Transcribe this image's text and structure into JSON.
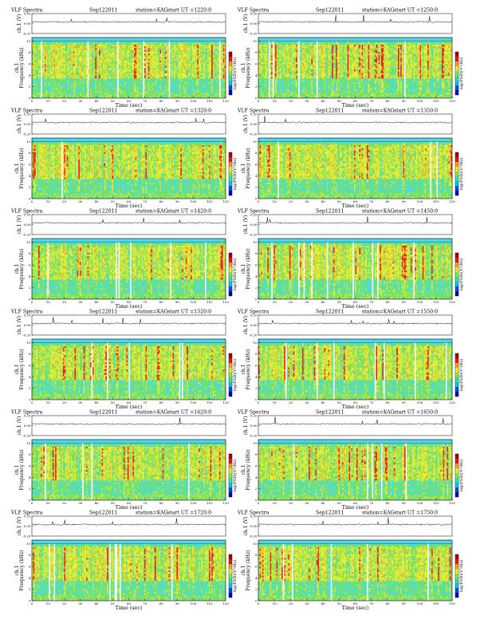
{
  "figure": {
    "header_left": "VLF Spectra",
    "date": "Sep122011",
    "station": "station=KAG",
    "start_prefix": "start  UT  ="
  },
  "colors": {
    "spectrogram": [
      "#4fd7ea",
      "#55e0b4",
      "#7be05a",
      "#c8e83a",
      "#f0f030",
      "#f5b020",
      "#e82020"
    ],
    "colorbar": [
      "#0000c8",
      "#0050f0",
      "#00c8f0",
      "#30e8a0",
      "#80f040",
      "#f0f020",
      "#f5a020",
      "#e81818",
      "#b00000"
    ]
  },
  "chart_data": [
    {
      "type": "heatmap",
      "id": "p1220",
      "start_ut": "1220:0",
      "seed": 11,
      "title": "",
      "xlabel": "Time  (sec)",
      "ylabel": "Frequency  (kHz)",
      "channel_label": "ch.1",
      "ch_axis_label": "ch.1 (V)",
      "colorbar_label": "log(PSD)(V²/Hz)",
      "x_range": [
        0,
        120
      ],
      "x_ticks": [
        0,
        10,
        20,
        30,
        40,
        50,
        60,
        70,
        80,
        90,
        100,
        110,
        120
      ],
      "y_range": [
        0,
        10
      ],
      "y_ticks": [
        0,
        2,
        4,
        6,
        8,
        10
      ],
      "ch_ticks": [
        "0.20",
        "0.00",
        "-0.20"
      ],
      "ch_range": [
        -0.2,
        0.2
      ]
    },
    {
      "type": "heatmap",
      "id": "p1250",
      "start_ut": "1250:0",
      "seed": 23,
      "title": "",
      "xlabel": "Time  (sec)",
      "ylabel": "Frequency  (kHz)",
      "channel_label": "ch.1",
      "ch_axis_label": "ch.1 (V)",
      "colorbar_label": "log(PSD)(V²/Hz)",
      "x_range": [
        0,
        120
      ],
      "x_ticks": [
        0,
        10,
        20,
        30,
        40,
        50,
        60,
        70,
        80,
        90,
        100,
        110,
        120
      ],
      "y_range": [
        0,
        10
      ],
      "y_ticks": [
        0,
        2,
        4,
        6,
        8,
        10
      ],
      "ch_ticks": [
        "0.20",
        "0.00",
        "-0.20"
      ],
      "ch_range": [
        -0.2,
        0.2
      ]
    },
    {
      "type": "heatmap",
      "id": "p1320",
      "start_ut": "1320:0",
      "seed": 37,
      "title": "",
      "xlabel": "Time  (sec)",
      "ylabel": "Frequency  (kHz)",
      "channel_label": "ch.1",
      "ch_axis_label": "ch.1 (V)",
      "colorbar_label": "log(PSD)(V²/Hz)",
      "x_range": [
        0,
        120
      ],
      "x_ticks": [
        0,
        10,
        20,
        30,
        40,
        50,
        60,
        70,
        80,
        90,
        100,
        110,
        120
      ],
      "y_range": [
        0,
        10
      ],
      "y_ticks": [
        0,
        2,
        4,
        6,
        8,
        10
      ],
      "ch_ticks": [
        "0.20",
        "0.00",
        "-0.20"
      ],
      "ch_range": [
        -0.2,
        0.2
      ]
    },
    {
      "type": "heatmap",
      "id": "p1350",
      "start_ut": "1350:0",
      "seed": 41,
      "title": "",
      "xlabel": "Time  (sec)",
      "ylabel": "Frequency  (kHz)",
      "channel_label": "ch.1",
      "ch_axis_label": "ch.1 (V)",
      "colorbar_label": "log(PSD)(V²/Hz)",
      "x_range": [
        0,
        120
      ],
      "x_ticks": [
        0,
        10,
        20,
        30,
        40,
        50,
        60,
        70,
        80,
        90,
        100,
        110,
        120
      ],
      "y_range": [
        0,
        10
      ],
      "y_ticks": [
        0,
        2,
        4,
        6,
        8,
        10
      ],
      "ch_ticks": [
        "0.20",
        "0.00",
        "-0.20"
      ],
      "ch_range": [
        -0.2,
        0.2
      ]
    },
    {
      "type": "heatmap",
      "id": "p1420",
      "start_ut": "1420:0",
      "seed": 53,
      "title": "",
      "xlabel": "Time  (sec)",
      "ylabel": "Frequency  (kHz)",
      "channel_label": "ch.1",
      "ch_axis_label": "ch.1 (V)",
      "colorbar_label": "log(PSD)(V²/Hz)",
      "x_range": [
        0,
        120
      ],
      "x_ticks": [
        0,
        10,
        20,
        30,
        40,
        50,
        60,
        70,
        80,
        90,
        100,
        110,
        120
      ],
      "y_range": [
        0,
        10
      ],
      "y_ticks": [
        0,
        2,
        4,
        6,
        8,
        10
      ],
      "ch_ticks": [
        "0.20",
        "0.00",
        "-0.20"
      ],
      "ch_range": [
        -0.2,
        0.2
      ]
    },
    {
      "type": "heatmap",
      "id": "p1450",
      "start_ut": "1450:0",
      "seed": 67,
      "title": "",
      "xlabel": "Time  (sec)",
      "ylabel": "Frequency  (kHz)",
      "channel_label": "ch.1",
      "ch_axis_label": "ch.1 (V)",
      "colorbar_label": "log(PSD)(V²/Hz)",
      "x_range": [
        0,
        120
      ],
      "x_ticks": [
        0,
        10,
        20,
        30,
        40,
        50,
        60,
        70,
        80,
        90,
        100,
        110,
        120
      ],
      "y_range": [
        0,
        10
      ],
      "y_ticks": [
        0,
        2,
        4,
        6,
        8,
        10
      ],
      "ch_ticks": [
        "0.20",
        "0.00",
        "-0.20"
      ],
      "ch_range": [
        -0.2,
        0.2
      ]
    },
    {
      "type": "heatmap",
      "id": "p1520",
      "start_ut": "1520:0",
      "seed": 71,
      "title": "",
      "xlabel": "Time  (sec)",
      "ylabel": "Frequency  (kHz)",
      "channel_label": "ch.1",
      "ch_axis_label": "ch.1 (V)",
      "colorbar_label": "log(PSD)(V²/Hz)",
      "x_range": [
        0,
        120
      ],
      "x_ticks": [
        0,
        10,
        20,
        30,
        40,
        50,
        60,
        70,
        80,
        90,
        100,
        110,
        120
      ],
      "y_range": [
        0,
        10
      ],
      "y_ticks": [
        0,
        2,
        4,
        6,
        8,
        10
      ],
      "ch_ticks": [
        "0.20",
        "0.00",
        "-0.20"
      ],
      "ch_range": [
        -0.2,
        0.2
      ]
    },
    {
      "type": "heatmap",
      "id": "p1550",
      "start_ut": "1550:0",
      "seed": 83,
      "title": "",
      "xlabel": "Time  (sec)",
      "ylabel": "Frequency  (kHz)",
      "channel_label": "ch.1",
      "ch_axis_label": "ch.1 (V)",
      "colorbar_label": "log(PSD)(V²/Hz)",
      "x_range": [
        0,
        120
      ],
      "x_ticks": [
        0,
        10,
        20,
        30,
        40,
        50,
        60,
        70,
        80,
        90,
        100,
        110,
        120
      ],
      "y_range": [
        0,
        10
      ],
      "y_ticks": [
        0,
        2,
        4,
        6,
        8,
        10
      ],
      "ch_ticks": [
        "0.20",
        "0.00",
        "-0.20"
      ],
      "ch_range": [
        -0.2,
        0.2
      ]
    },
    {
      "type": "heatmap",
      "id": "p1620",
      "start_ut": "1620:0",
      "seed": 97,
      "title": "",
      "xlabel": "Time  (sec)",
      "ylabel": "Frequency  (kHz)",
      "channel_label": "ch.1",
      "ch_axis_label": "ch.1 (V)",
      "colorbar_label": "log(PSD)(V²/Hz)",
      "x_range": [
        0,
        120
      ],
      "x_ticks": [
        0,
        10,
        20,
        30,
        40,
        50,
        60,
        70,
        80,
        90,
        100,
        110,
        120
      ],
      "y_range": [
        0,
        10
      ],
      "y_ticks": [
        0,
        2,
        4,
        6,
        8,
        10
      ],
      "ch_ticks": [
        "0.20",
        "0.00",
        "-0.20"
      ],
      "ch_range": [
        -0.2,
        0.2
      ]
    },
    {
      "type": "heatmap",
      "id": "p1650",
      "start_ut": "1650:0",
      "seed": 101,
      "title": "",
      "xlabel": "Time  (sec)",
      "ylabel": "Frequency  (kHz)",
      "channel_label": "ch.1",
      "ch_axis_label": "ch.1 (V)",
      "colorbar_label": "log(PSD)(V²/Hz)",
      "x_range": [
        0,
        120
      ],
      "x_ticks": [
        0,
        10,
        20,
        30,
        40,
        50,
        60,
        70,
        80,
        90,
        100,
        110,
        120
      ],
      "y_range": [
        0,
        10
      ],
      "y_ticks": [
        0,
        2,
        4,
        6,
        8,
        10
      ],
      "ch_ticks": [
        "0.20",
        "0.00",
        "-0.20"
      ],
      "ch_range": [
        -0.2,
        0.2
      ]
    },
    {
      "type": "heatmap",
      "id": "p1720",
      "start_ut": "1720:0",
      "seed": 113,
      "title": "",
      "xlabel": "Time  (sec)",
      "ylabel": "Frequency  (kHz)",
      "channel_label": "ch.1",
      "ch_axis_label": "ch.1 (V)",
      "colorbar_label": "log(PSD)(V²/Hz)",
      "x_range": [
        0,
        120
      ],
      "x_ticks": [
        0,
        10,
        20,
        30,
        40,
        50,
        60,
        70,
        80,
        90,
        100,
        110,
        120
      ],
      "y_range": [
        0,
        10
      ],
      "y_ticks": [
        0,
        2,
        4,
        6,
        8,
        10
      ],
      "ch_ticks": [
        "0.20",
        "0.00",
        "-0.20"
      ],
      "ch_range": [
        -0.2,
        0.2
      ]
    },
    {
      "type": "heatmap",
      "id": "p1750",
      "start_ut": "1750:0",
      "seed": 127,
      "title": "",
      "xlabel": "Time  (sec)",
      "ylabel": "Frequency  (kHz)",
      "channel_label": "ch.1",
      "ch_axis_label": "ch.1 (V)",
      "colorbar_label": "log(PSD)(V²/Hz)",
      "x_range": [
        0,
        120
      ],
      "x_ticks": [
        0,
        10,
        20,
        30,
        40,
        50,
        60,
        70,
        80,
        90,
        100,
        110,
        120
      ],
      "y_range": [
        0,
        10
      ],
      "y_ticks": [
        0,
        2,
        4,
        6,
        8,
        10
      ],
      "ch_ticks": [
        "0.20",
        "0.00",
        "-0.20"
      ],
      "ch_range": [
        -0.2,
        0.2
      ]
    }
  ]
}
